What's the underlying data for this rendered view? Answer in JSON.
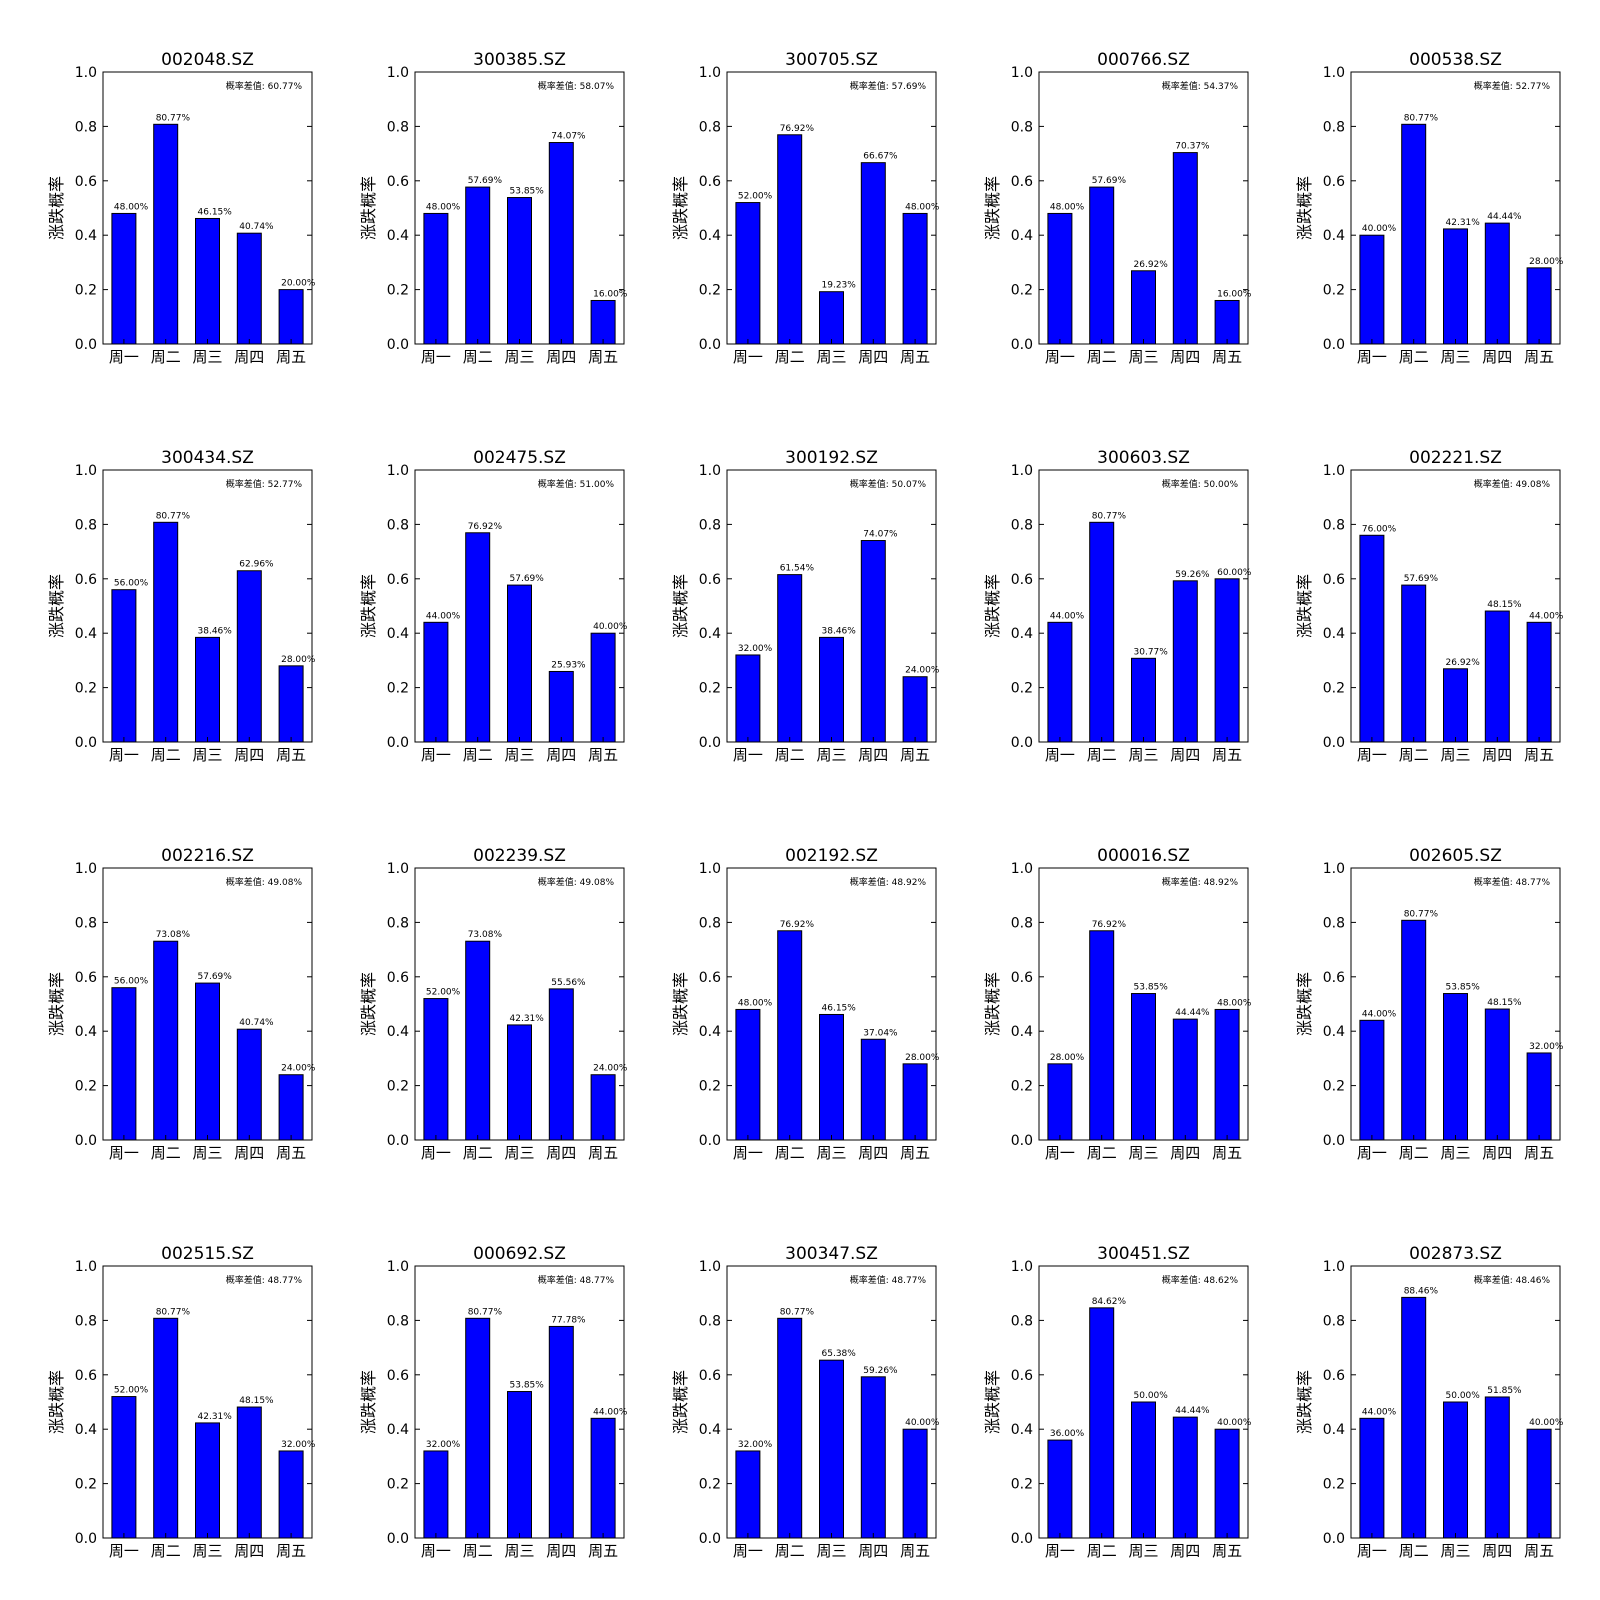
{
  "colors": {
    "bar": "#0000ff",
    "axis": "#000000",
    "background": "#ffffff"
  },
  "chart_data": [
    {
      "type": "bar",
      "title": "002048.SZ",
      "ylabel": "涨跌概率",
      "categories": [
        "周一",
        "周二",
        "周三",
        "周四",
        "周五"
      ],
      "values": [
        0.48,
        0.8077,
        0.4615,
        0.4074,
        0.2
      ],
      "data_labels": [
        "48.00%",
        "80.77%",
        "46.15%",
        "40.74%",
        "20.00%"
      ],
      "annotation": "概率差值: 60.77%",
      "ylim": [
        0,
        1.0
      ],
      "yticks": [
        "0.0",
        "0.2",
        "0.4",
        "0.6",
        "0.8",
        "1.0"
      ]
    },
    {
      "type": "bar",
      "title": "300385.SZ",
      "ylabel": "涨跌概率",
      "categories": [
        "周一",
        "周二",
        "周三",
        "周四",
        "周五"
      ],
      "values": [
        0.48,
        0.5769,
        0.5385,
        0.7407,
        0.16
      ],
      "data_labels": [
        "48.00%",
        "57.69%",
        "53.85%",
        "74.07%",
        "16.00%"
      ],
      "annotation": "概率差值: 58.07%",
      "ylim": [
        0,
        1.0
      ],
      "yticks": [
        "0.0",
        "0.2",
        "0.4",
        "0.6",
        "0.8",
        "1.0"
      ]
    },
    {
      "type": "bar",
      "title": "300705.SZ",
      "ylabel": "涨跌概率",
      "categories": [
        "周一",
        "周二",
        "周三",
        "周四",
        "周五"
      ],
      "values": [
        0.52,
        0.7692,
        0.1923,
        0.6667,
        0.48
      ],
      "data_labels": [
        "52.00%",
        "76.92%",
        "19.23%",
        "66.67%",
        "48.00%"
      ],
      "annotation": "概率差值: 57.69%",
      "ylim": [
        0,
        1.0
      ],
      "yticks": [
        "0.0",
        "0.2",
        "0.4",
        "0.6",
        "0.8",
        "1.0"
      ]
    },
    {
      "type": "bar",
      "title": "000766.SZ",
      "ylabel": "涨跌概率",
      "categories": [
        "周一",
        "周二",
        "周三",
        "周四",
        "周五"
      ],
      "values": [
        0.48,
        0.5769,
        0.2692,
        0.7037,
        0.16
      ],
      "data_labels": [
        "48.00%",
        "57.69%",
        "26.92%",
        "70.37%",
        "16.00%"
      ],
      "annotation": "概率差值: 54.37%",
      "ylim": [
        0,
        1.0
      ],
      "yticks": [
        "0.0",
        "0.2",
        "0.4",
        "0.6",
        "0.8",
        "1.0"
      ]
    },
    {
      "type": "bar",
      "title": "000538.SZ",
      "ylabel": "涨跌概率",
      "categories": [
        "周一",
        "周二",
        "周三",
        "周四",
        "周五"
      ],
      "values": [
        0.4,
        0.8077,
        0.4231,
        0.4444,
        0.28
      ],
      "data_labels": [
        "40.00%",
        "80.77%",
        "42.31%",
        "44.44%",
        "28.00%"
      ],
      "annotation": "概率差值: 52.77%",
      "ylim": [
        0,
        1.0
      ],
      "yticks": [
        "0.0",
        "0.2",
        "0.4",
        "0.6",
        "0.8",
        "1.0"
      ]
    },
    {
      "type": "bar",
      "title": "300434.SZ",
      "ylabel": "涨跌概率",
      "categories": [
        "周一",
        "周二",
        "周三",
        "周四",
        "周五"
      ],
      "values": [
        0.56,
        0.8077,
        0.3846,
        0.6296,
        0.28
      ],
      "data_labels": [
        "56.00%",
        "80.77%",
        "38.46%",
        "62.96%",
        "28.00%"
      ],
      "annotation": "概率差值: 52.77%",
      "ylim": [
        0,
        1.0
      ],
      "yticks": [
        "0.0",
        "0.2",
        "0.4",
        "0.6",
        "0.8",
        "1.0"
      ]
    },
    {
      "type": "bar",
      "title": "002475.SZ",
      "ylabel": "涨跌概率",
      "categories": [
        "周一",
        "周二",
        "周三",
        "周四",
        "周五"
      ],
      "values": [
        0.44,
        0.7692,
        0.5769,
        0.2593,
        0.4
      ],
      "data_labels": [
        "44.00%",
        "76.92%",
        "57.69%",
        "25.93%",
        "40.00%"
      ],
      "annotation": "概率差值: 51.00%",
      "ylim": [
        0,
        1.0
      ],
      "yticks": [
        "0.0",
        "0.2",
        "0.4",
        "0.6",
        "0.8",
        "1.0"
      ]
    },
    {
      "type": "bar",
      "title": "300192.SZ",
      "ylabel": "涨跌概率",
      "categories": [
        "周一",
        "周二",
        "周三",
        "周四",
        "周五"
      ],
      "values": [
        0.32,
        0.6154,
        0.3846,
        0.7407,
        0.24
      ],
      "data_labels": [
        "32.00%",
        "61.54%",
        "38.46%",
        "74.07%",
        "24.00%"
      ],
      "annotation": "概率差值: 50.07%",
      "ylim": [
        0,
        1.0
      ],
      "yticks": [
        "0.0",
        "0.2",
        "0.4",
        "0.6",
        "0.8",
        "1.0"
      ]
    },
    {
      "type": "bar",
      "title": "300603.SZ",
      "ylabel": "涨跌概率",
      "categories": [
        "周一",
        "周二",
        "周三",
        "周四",
        "周五"
      ],
      "values": [
        0.44,
        0.8077,
        0.3077,
        0.5926,
        0.6
      ],
      "data_labels": [
        "44.00%",
        "80.77%",
        "30.77%",
        "59.26%",
        "60.00%"
      ],
      "annotation": "概率差值: 50.00%",
      "ylim": [
        0,
        1.0
      ],
      "yticks": [
        "0.0",
        "0.2",
        "0.4",
        "0.6",
        "0.8",
        "1.0"
      ]
    },
    {
      "type": "bar",
      "title": "002221.SZ",
      "ylabel": "涨跌概率",
      "categories": [
        "周一",
        "周二",
        "周三",
        "周四",
        "周五"
      ],
      "values": [
        0.76,
        0.5769,
        0.2692,
        0.4815,
        0.44
      ],
      "data_labels": [
        "76.00%",
        "57.69%",
        "26.92%",
        "48.15%",
        "44.00%"
      ],
      "annotation": "概率差值: 49.08%",
      "ylim": [
        0,
        1.0
      ],
      "yticks": [
        "0.0",
        "0.2",
        "0.4",
        "0.6",
        "0.8",
        "1.0"
      ]
    },
    {
      "type": "bar",
      "title": "002216.SZ",
      "ylabel": "涨跌概率",
      "categories": [
        "周一",
        "周二",
        "周三",
        "周四",
        "周五"
      ],
      "values": [
        0.56,
        0.7308,
        0.5769,
        0.4074,
        0.24
      ],
      "data_labels": [
        "56.00%",
        "73.08%",
        "57.69%",
        "40.74%",
        "24.00%"
      ],
      "annotation": "概率差值: 49.08%",
      "ylim": [
        0,
        1.0
      ],
      "yticks": [
        "0.0",
        "0.2",
        "0.4",
        "0.6",
        "0.8",
        "1.0"
      ]
    },
    {
      "type": "bar",
      "title": "002239.SZ",
      "ylabel": "涨跌概率",
      "categories": [
        "周一",
        "周二",
        "周三",
        "周四",
        "周五"
      ],
      "values": [
        0.52,
        0.7308,
        0.4231,
        0.5556,
        0.24
      ],
      "data_labels": [
        "52.00%",
        "73.08%",
        "42.31%",
        "55.56%",
        "24.00%"
      ],
      "annotation": "概率差值: 49.08%",
      "ylim": [
        0,
        1.0
      ],
      "yticks": [
        "0.0",
        "0.2",
        "0.4",
        "0.6",
        "0.8",
        "1.0"
      ]
    },
    {
      "type": "bar",
      "title": "002192.SZ",
      "ylabel": "涨跌概率",
      "categories": [
        "周一",
        "周二",
        "周三",
        "周四",
        "周五"
      ],
      "values": [
        0.48,
        0.7692,
        0.4615,
        0.3704,
        0.28
      ],
      "data_labels": [
        "48.00%",
        "76.92%",
        "46.15%",
        "37.04%",
        "28.00%"
      ],
      "annotation": "概率差值: 48.92%",
      "ylim": [
        0,
        1.0
      ],
      "yticks": [
        "0.0",
        "0.2",
        "0.4",
        "0.6",
        "0.8",
        "1.0"
      ]
    },
    {
      "type": "bar",
      "title": "000016.SZ",
      "ylabel": "涨跌概率",
      "categories": [
        "周一",
        "周二",
        "周三",
        "周四",
        "周五"
      ],
      "values": [
        0.28,
        0.7692,
        0.5385,
        0.4444,
        0.48
      ],
      "data_labels": [
        "28.00%",
        "76.92%",
        "53.85%",
        "44.44%",
        "48.00%"
      ],
      "annotation": "概率差值: 48.92%",
      "ylim": [
        0,
        1.0
      ],
      "yticks": [
        "0.0",
        "0.2",
        "0.4",
        "0.6",
        "0.8",
        "1.0"
      ]
    },
    {
      "type": "bar",
      "title": "002605.SZ",
      "ylabel": "涨跌概率",
      "categories": [
        "周一",
        "周二",
        "周三",
        "周四",
        "周五"
      ],
      "values": [
        0.44,
        0.8077,
        0.5385,
        0.4815,
        0.32
      ],
      "data_labels": [
        "44.00%",
        "80.77%",
        "53.85%",
        "48.15%",
        "32.00%"
      ],
      "annotation": "概率差值: 48.77%",
      "ylim": [
        0,
        1.0
      ],
      "yticks": [
        "0.0",
        "0.2",
        "0.4",
        "0.6",
        "0.8",
        "1.0"
      ]
    },
    {
      "type": "bar",
      "title": "002515.SZ",
      "ylabel": "涨跌概率",
      "categories": [
        "周一",
        "周二",
        "周三",
        "周四",
        "周五"
      ],
      "values": [
        0.52,
        0.8077,
        0.4231,
        0.4815,
        0.32
      ],
      "data_labels": [
        "52.00%",
        "80.77%",
        "42.31%",
        "48.15%",
        "32.00%"
      ],
      "annotation": "概率差值: 48.77%",
      "ylim": [
        0,
        1.0
      ],
      "yticks": [
        "0.0",
        "0.2",
        "0.4",
        "0.6",
        "0.8",
        "1.0"
      ]
    },
    {
      "type": "bar",
      "title": "000692.SZ",
      "ylabel": "涨跌概率",
      "categories": [
        "周一",
        "周二",
        "周三",
        "周四",
        "周五"
      ],
      "values": [
        0.32,
        0.8077,
        0.5385,
        0.7778,
        0.44
      ],
      "data_labels": [
        "32.00%",
        "80.77%",
        "53.85%",
        "77.78%",
        "44.00%"
      ],
      "annotation": "概率差值: 48.77%",
      "ylim": [
        0,
        1.0
      ],
      "yticks": [
        "0.0",
        "0.2",
        "0.4",
        "0.6",
        "0.8",
        "1.0"
      ]
    },
    {
      "type": "bar",
      "title": "300347.SZ",
      "ylabel": "涨跌概率",
      "categories": [
        "周一",
        "周二",
        "周三",
        "周四",
        "周五"
      ],
      "values": [
        0.32,
        0.8077,
        0.6538,
        0.5926,
        0.4
      ],
      "data_labels": [
        "32.00%",
        "80.77%",
        "65.38%",
        "59.26%",
        "40.00%"
      ],
      "annotation": "概率差值: 48.77%",
      "ylim": [
        0,
        1.0
      ],
      "yticks": [
        "0.0",
        "0.2",
        "0.4",
        "0.6",
        "0.8",
        "1.0"
      ]
    },
    {
      "type": "bar",
      "title": "300451.SZ",
      "ylabel": "涨跌概率",
      "categories": [
        "周一",
        "周二",
        "周三",
        "周四",
        "周五"
      ],
      "values": [
        0.36,
        0.8462,
        0.5,
        0.4444,
        0.4
      ],
      "data_labels": [
        "36.00%",
        "84.62%",
        "50.00%",
        "44.44%",
        "40.00%"
      ],
      "annotation": "概率差值: 48.62%",
      "ylim": [
        0,
        1.0
      ],
      "yticks": [
        "0.0",
        "0.2",
        "0.4",
        "0.6",
        "0.8",
        "1.0"
      ]
    },
    {
      "type": "bar",
      "title": "002873.SZ",
      "ylabel": "涨跌概率",
      "categories": [
        "周一",
        "周二",
        "周三",
        "周四",
        "周五"
      ],
      "values": [
        0.44,
        0.8846,
        0.5,
        0.5185,
        0.4
      ],
      "data_labels": [
        "44.00%",
        "88.46%",
        "50.00%",
        "51.85%",
        "40.00%"
      ],
      "annotation": "概率差值: 48.46%",
      "ylim": [
        0,
        1.0
      ],
      "yticks": [
        "0.0",
        "0.2",
        "0.4",
        "0.6",
        "0.8",
        "1.0"
      ]
    }
  ]
}
